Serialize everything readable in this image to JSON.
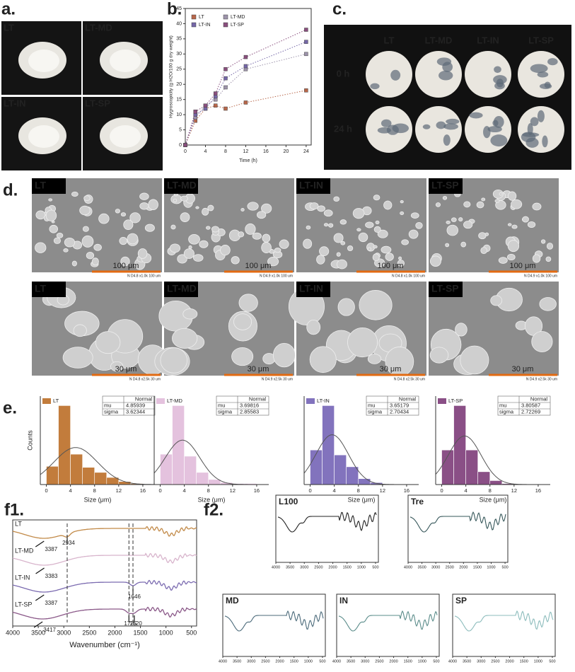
{
  "panels": [
    "a.",
    "b.",
    "c.",
    "d.",
    "e.",
    "f1.",
    "f2."
  ],
  "photos": [
    "LT",
    "LT-MD",
    "LT-IN",
    "LT-SP"
  ],
  "plates": {
    "columns": [
      "LT",
      "LT-MD",
      "LT-IN",
      "LT-SP"
    ],
    "rows": [
      "0 h",
      "24 h"
    ]
  },
  "sem": {
    "labels": [
      "LT",
      "LT-MD",
      "LT-IN",
      "LT-SP"
    ],
    "rows": [
      {
        "scale": "100 μm",
        "captions": [
          "N D4.8 x1.0k 100 um",
          "N D4.9 x1.0k 100 um",
          "N D4.8 x1.0k 100 um",
          "N D4.9 x1.0k 100 um"
        ]
      },
      {
        "scale": "30 μm",
        "captions": [
          "N D4.8 x2.5k 30 um",
          "N D4.9 x2.5k 30 um",
          "N D4.8 x2.5k 30 um",
          "N D4.9 x2.5k 30 um"
        ]
      }
    ]
  },
  "chart_data": [
    {
      "type": "line",
      "xlabel": "Time (h)",
      "ylabel": "Hygroscopicity (g H2O/100 g dry weight)",
      "x": [
        0,
        2,
        4,
        6,
        8,
        12,
        24
      ],
      "xlim": [
        0,
        25
      ],
      "xticks": [
        0,
        4,
        8,
        12,
        16,
        20,
        24
      ],
      "ylim": [
        0,
        45
      ],
      "yticks": [
        0,
        5,
        10,
        15,
        20,
        25,
        30,
        35,
        40,
        45
      ],
      "series": [
        {
          "name": "LT",
          "color": "#b8674a",
          "values": [
            0,
            8,
            12,
            13,
            12,
            14,
            18
          ]
        },
        {
          "name": "LT-MD",
          "color": "#9d93ab",
          "values": [
            0,
            9,
            13,
            15,
            19,
            25,
            30
          ]
        },
        {
          "name": "LT-IN",
          "color": "#7567a8",
          "values": [
            0,
            10,
            12,
            16,
            22,
            26,
            34
          ]
        },
        {
          "name": "LT-SP",
          "color": "#8a4f7e",
          "values": [
            0,
            11,
            13,
            17,
            25,
            29,
            38
          ]
        }
      ]
    },
    {
      "type": "histogram",
      "legend": "LT",
      "color": "#c27c3c",
      "ylabel": "Counts",
      "xlabel": "Size (μm)",
      "bins": [
        0,
        2,
        4,
        6,
        8,
        10,
        12,
        14,
        16
      ],
      "counts": [
        18,
        78,
        30,
        17,
        12,
        7,
        3,
        1
      ],
      "xlim": [
        -1,
        18
      ],
      "xticks": [
        0,
        4,
        8,
        12,
        16
      ],
      "fit": {
        "title": "Normal",
        "labels": [
          "mu",
          "sigma"
        ],
        "values": [
          4.85939,
          3.62344
        ]
      }
    },
    {
      "type": "histogram",
      "legend": "LT-MD",
      "color": "#e4c2de",
      "xlabel": "Size (μm)",
      "bins": [
        0,
        2,
        4,
        6,
        8,
        10,
        12,
        14,
        16
      ],
      "counts": [
        30,
        78,
        28,
        12,
        5,
        2,
        1,
        1
      ],
      "xlim": [
        -1,
        18
      ],
      "xticks": [
        0,
        4,
        8,
        12,
        16
      ],
      "fit": {
        "title": "Normal",
        "labels": [
          "mu",
          "sigma"
        ],
        "values": [
          3.69816,
          2.85583
        ]
      }
    },
    {
      "type": "histogram",
      "legend": "LT-IN",
      "color": "#8273bd",
      "xlabel": "Size (μm)",
      "bins": [
        0,
        2,
        4,
        6,
        8,
        10,
        12,
        14,
        16
      ],
      "counts": [
        35,
        80,
        30,
        18,
        6,
        2,
        0,
        0
      ],
      "xlim": [
        -1,
        18
      ],
      "xticks": [
        0,
        4,
        8,
        12,
        16
      ],
      "fit": {
        "title": "Normal",
        "labels": [
          "mu",
          "sigma"
        ],
        "values": [
          3.65179,
          2.70434
        ]
      }
    },
    {
      "type": "histogram",
      "legend": "LT-SP",
      "color": "#8a4f86",
      "xlabel": "Size (μm)",
      "bins": [
        0,
        2,
        4,
        6,
        8,
        10,
        12,
        14,
        16
      ],
      "counts": [
        35,
        80,
        35,
        13,
        4,
        1,
        0,
        0
      ],
      "xlim": [
        -1,
        18
      ],
      "xticks": [
        0,
        4,
        8,
        12,
        16
      ],
      "fit": {
        "title": "Normal",
        "labels": [
          "mu",
          "sigma"
        ],
        "values": [
          3.80587,
          2.72269
        ]
      }
    },
    {
      "type": "spectra",
      "xlabel": "Wavenumber (cm⁻¹)",
      "xlim": [
        4000,
        400
      ],
      "xticks": [
        4000,
        3500,
        3000,
        2500,
        2000,
        1500,
        1000,
        500
      ],
      "series": [
        {
          "name": "LT",
          "color": "#c28a48",
          "peaks": [
            3387,
            2934
          ]
        },
        {
          "name": "LT-MD",
          "color": "#d8b4cc",
          "peaks": [
            3383
          ]
        },
        {
          "name": "LT-IN",
          "color": "#7b6bb0",
          "peaks": [
            3387,
            1646
          ]
        },
        {
          "name": "LT-SP",
          "color": "#8a5888",
          "peaks": [
            3417,
            1725,
            1620
          ]
        }
      ]
    },
    {
      "type": "spectrum",
      "title": "L100",
      "color": "#222222",
      "xlim": [
        4000,
        400
      ],
      "xticks": [
        4000,
        3500,
        3000,
        2500,
        2000,
        1500,
        1000,
        500
      ]
    },
    {
      "type": "spectrum",
      "title": "Tre",
      "color": "#36575a",
      "xlim": [
        4000,
        400
      ],
      "xticks": [
        4000,
        3500,
        3000,
        2500,
        2000,
        1500,
        1000,
        500
      ]
    },
    {
      "type": "spectrum",
      "title": "MD",
      "color": "#4b6a7a",
      "xlim": [
        4000,
        400
      ],
      "xticks": [
        4000,
        3500,
        3000,
        2500,
        2000,
        1500,
        1000,
        500
      ]
    },
    {
      "type": "spectrum",
      "title": "IN",
      "color": "#5a8c8a",
      "xlim": [
        4000,
        400
      ],
      "xticks": [
        4000,
        3500,
        3000,
        2500,
        2000,
        1500,
        1000,
        500
      ]
    },
    {
      "type": "spectrum",
      "title": "SP",
      "color": "#8cbcbc",
      "xlim": [
        4000,
        400
      ],
      "xticks": [
        4000,
        3500,
        3000,
        2500,
        2000,
        1500,
        1000,
        500
      ]
    }
  ]
}
